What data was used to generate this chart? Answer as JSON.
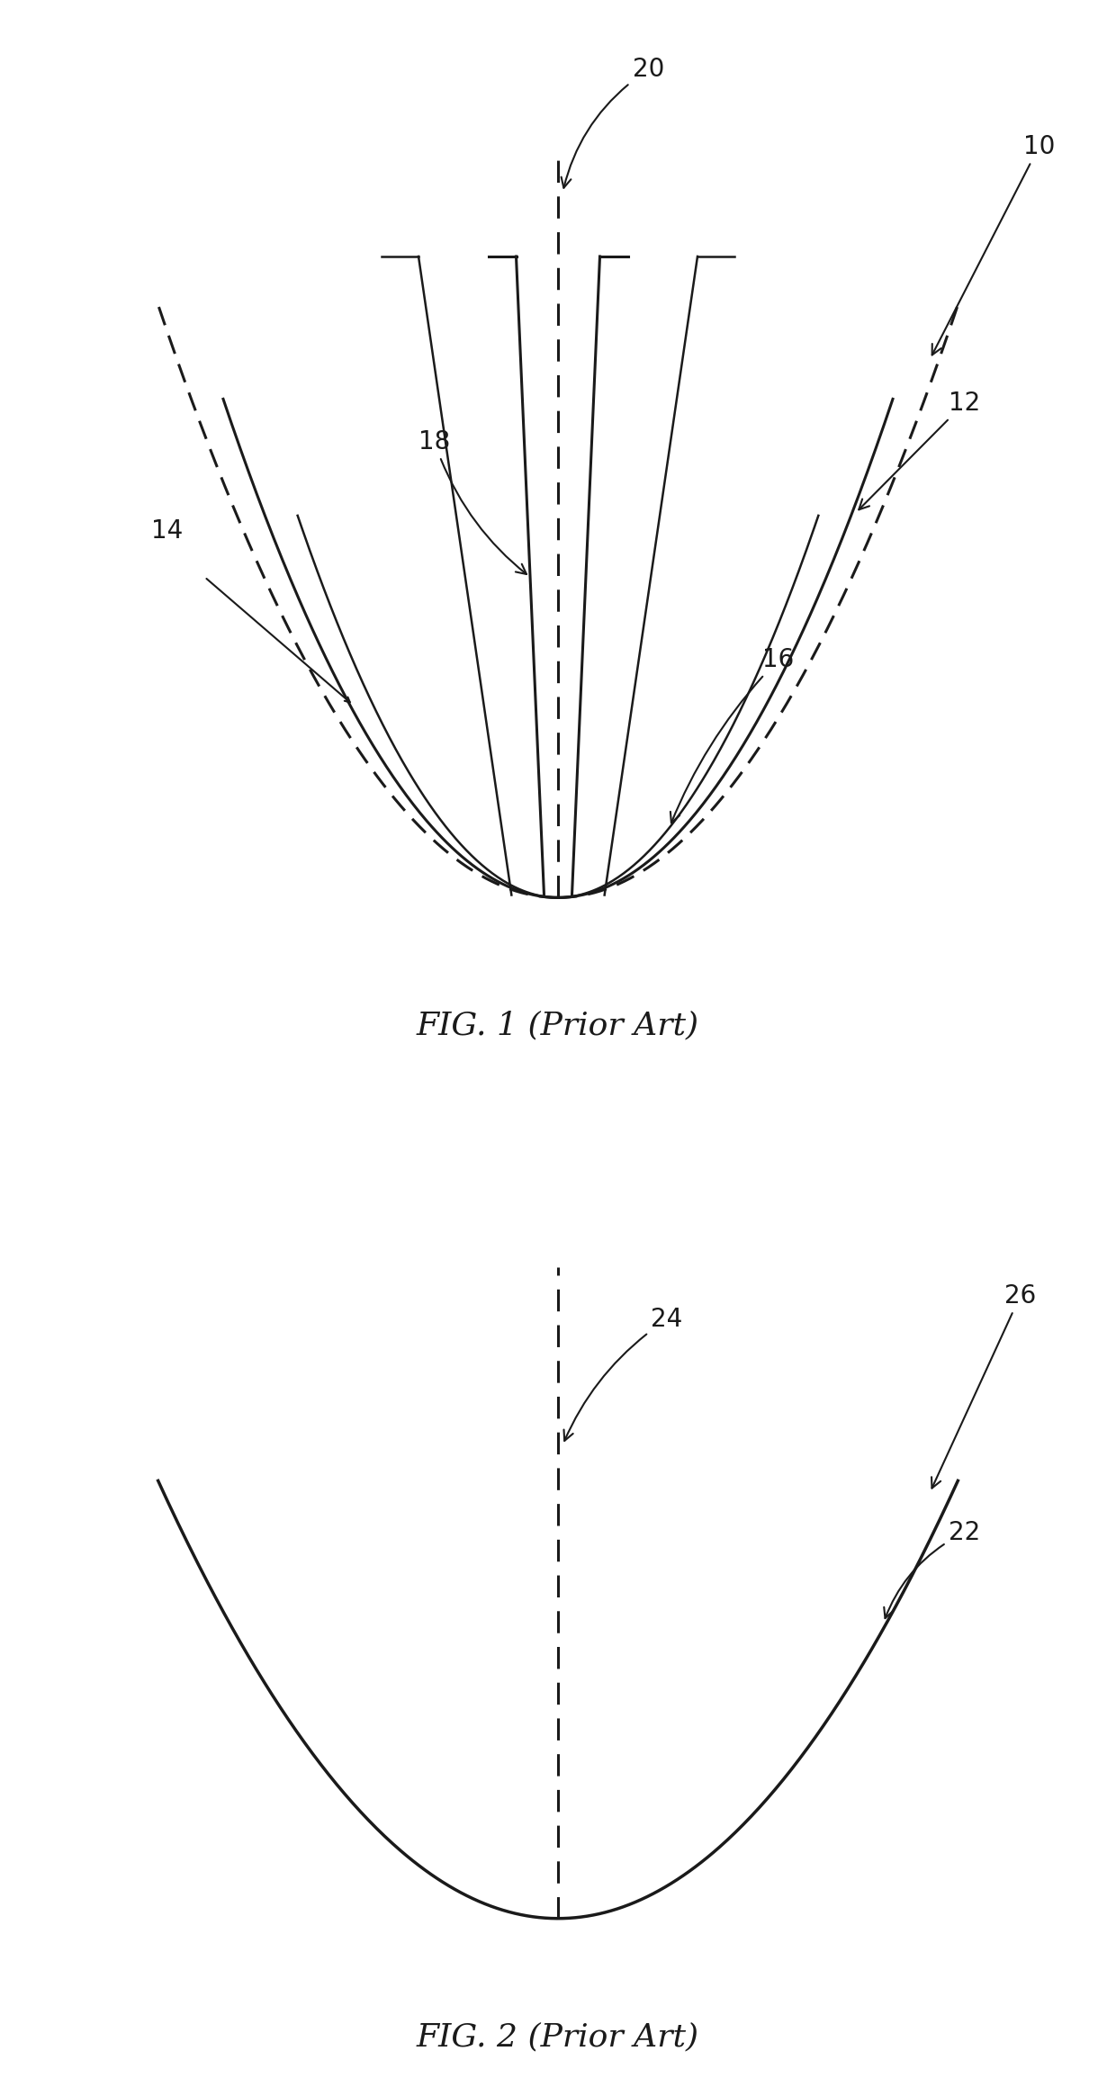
{
  "fig1_title": "FIG. 1 (Prior Art)",
  "fig2_title": "FIG. 2 (Prior Art)",
  "label_10": "10",
  "label_12": "12",
  "label_14": "14",
  "label_16": "16",
  "label_18": "18",
  "label_20": "20",
  "label_22": "22",
  "label_24": "24",
  "label_26": "26",
  "line_color": "#1a1a1a",
  "bg_color": "#ffffff",
  "fig_title_fontsize": 26,
  "label_fontsize": 20
}
